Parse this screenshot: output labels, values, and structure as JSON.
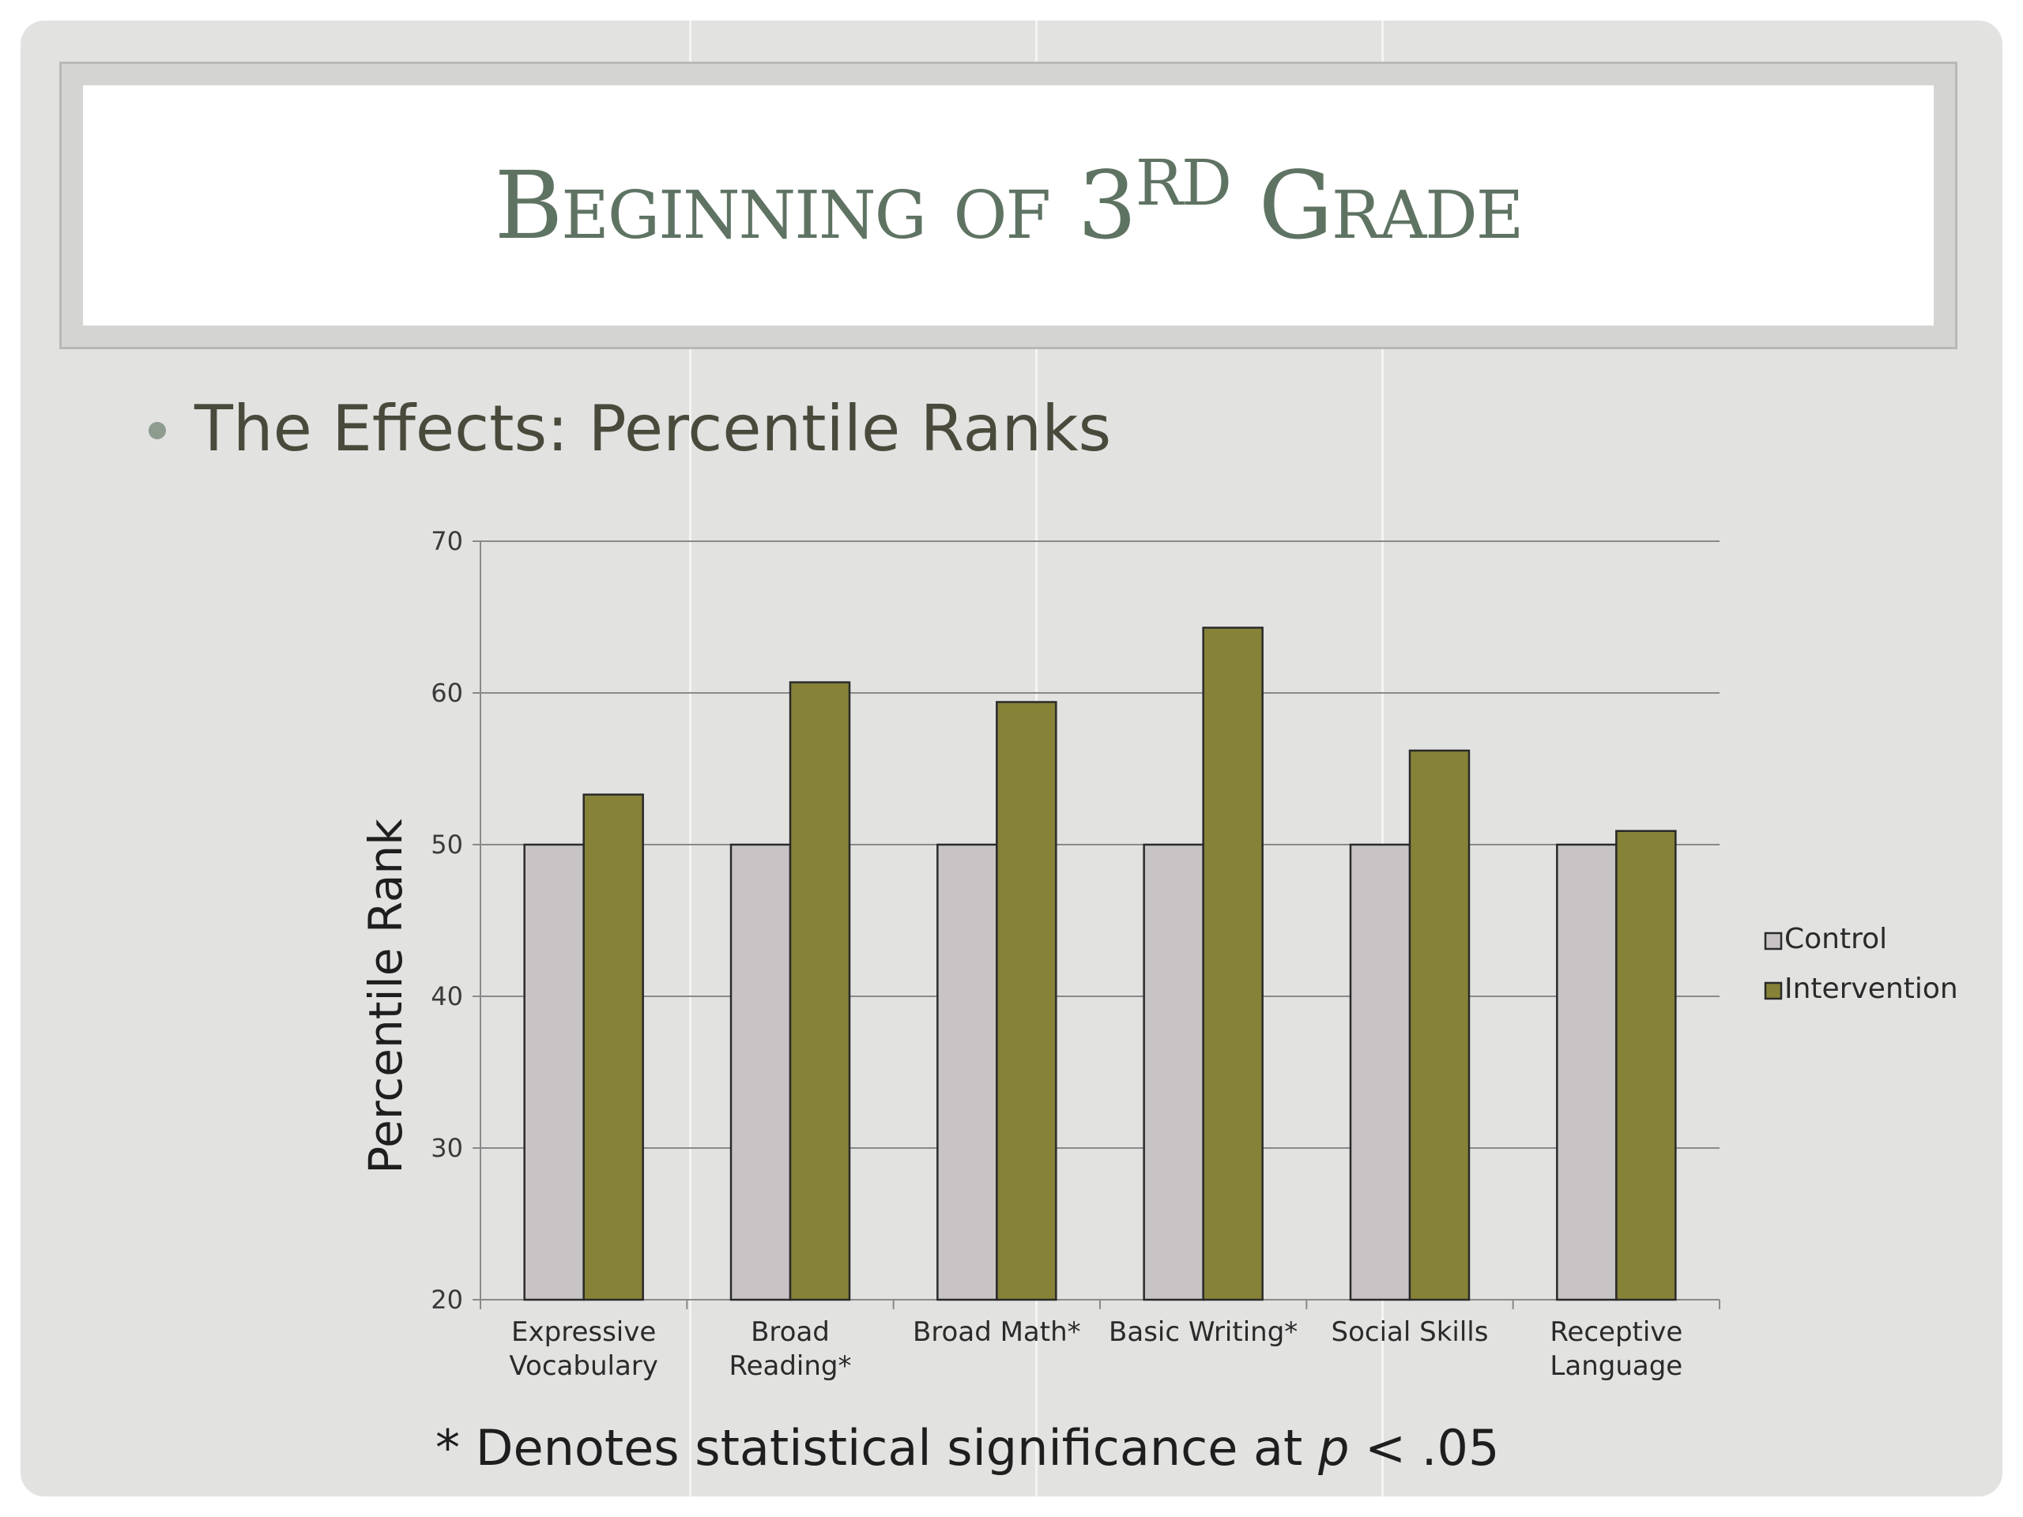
{
  "slide": {
    "title": {
      "main": "Beginning of 3",
      "sup": "RD",
      "tail": " Grade"
    },
    "bullet": "The Effects: Percentile Ranks",
    "note": {
      "before": "* Denotes statistical significance at ",
      "italic": "p",
      "after": " < .05"
    }
  },
  "colors": {
    "slide_bg": "#e2e2e1",
    "title_text": "#5f7363",
    "control": "#c8c4c6",
    "intervention": "#868238",
    "bar_stroke": "#2a2a2a",
    "grid": "#8a8a8a"
  },
  "chart_data": {
    "type": "bar",
    "ylabel": "Percentile Rank",
    "xlabel": "",
    "ylim": [
      20,
      70
    ],
    "yticks": [
      20,
      30,
      40,
      50,
      60,
      70
    ],
    "grid": true,
    "legend_position": "right",
    "categories": [
      [
        "Expressive",
        "Vocabulary"
      ],
      [
        "Broad",
        "Reading*"
      ],
      [
        "Broad Math*"
      ],
      [
        "Basic Writing*"
      ],
      [
        "Social Skills"
      ],
      [
        "Receptive",
        "Language"
      ]
    ],
    "series": [
      {
        "name": "Control",
        "color": "#c8c4c6",
        "values": [
          50,
          50,
          50,
          50,
          50,
          50
        ]
      },
      {
        "name": "Intervention",
        "color": "#868238",
        "values": [
          53.3,
          60.7,
          59.4,
          64.3,
          56.2,
          50.9
        ]
      }
    ]
  }
}
